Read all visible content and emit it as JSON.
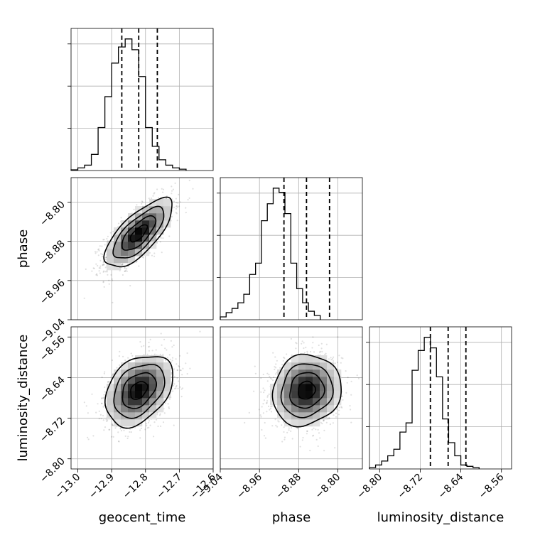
{
  "chart_data": {
    "type": "corner",
    "parameters": [
      "geocent_time",
      "phase",
      "luminosity_distance"
    ],
    "xlabels": [
      "geocent_time",
      "phase",
      "luminosity_distance"
    ],
    "ylabels": [
      "",
      "phase",
      "luminosity_distance"
    ],
    "ranges": {
      "geocent_time": [
        -13.02,
        -12.6
      ],
      "phase": [
        -9.04,
        -8.75
      ],
      "luminosity_distance": [
        -8.82,
        -8.54
      ]
    },
    "ticks": {
      "geocent_time": [
        -13.0,
        -12.9,
        -12.8,
        -12.7,
        -12.6
      ],
      "phase": [
        -9.04,
        -8.96,
        -8.88,
        -8.8
      ],
      "luminosity_distance": [
        -8.8,
        -8.72,
        -8.64,
        -8.56
      ]
    },
    "tick_labels": {
      "geocent_time": [
        "−13.0",
        "−12.9",
        "−12.8",
        "−12.7",
        "−12.6"
      ],
      "phase_x": [
        "−9.04",
        "−8.96",
        "−8.88",
        "−8.80"
      ],
      "phase_y": [
        "−8.80",
        "−8.88",
        "−8.96",
        "−9.04"
      ],
      "luminosity_distance_x": [
        "−8.80",
        "−8.72",
        "−8.64",
        "−8.56"
      ],
      "luminosity_distance_y": [
        "−8.56",
        "−8.64",
        "−8.72",
        "−8.80"
      ]
    },
    "quantiles": {
      "geocent_time": [
        -12.87,
        -12.82,
        -12.765
      ],
      "phase": [
        -8.91,
        -8.864,
        -8.817
      ],
      "luminosity_distance": [
        -8.7,
        -8.665,
        -8.63
      ]
    },
    "histograms": {
      "geocent_time": {
        "bin_start": -13.02,
        "bin_width": 0.02,
        "counts": [
          0.5,
          2,
          4,
          12,
          32,
          55,
          80,
          92,
          98,
          90,
          70,
          32,
          18,
          8,
          4,
          2,
          1
        ]
      },
      "phase": {
        "bin_start": -9.04,
        "bin_width": 0.012,
        "counts": [
          2,
          5,
          8,
          12,
          18,
          32,
          40,
          70,
          82,
          93,
          90,
          75,
          40,
          22,
          12,
          6,
          3
        ]
      },
      "luminosity_distance": {
        "bin_start": -8.82,
        "bin_width": 0.012,
        "counts": [
          1,
          3,
          6,
          10,
          15,
          28,
          35,
          75,
          90,
          100,
          92,
          70,
          38,
          20,
          10,
          3,
          2,
          1
        ]
      }
    },
    "joint": [
      {
        "x": "geocent_time",
        "y": "phase",
        "mean": [
          -12.82,
          -8.864
        ],
        "std": [
          0.05,
          0.035
        ],
        "rho": 0.72
      },
      {
        "x": "geocent_time",
        "y": "luminosity_distance",
        "mean": [
          -12.82,
          -8.665
        ],
        "std": [
          0.05,
          0.035
        ],
        "rho": 0.35
      },
      {
        "x": "phase",
        "y": "luminosity_distance",
        "mean": [
          -8.864,
          -8.665
        ],
        "std": [
          0.035,
          0.035
        ],
        "rho": 0.1
      }
    ],
    "contour_levels": [
      0.5,
      1.0,
      1.5,
      2.0
    ],
    "grid": true
  }
}
